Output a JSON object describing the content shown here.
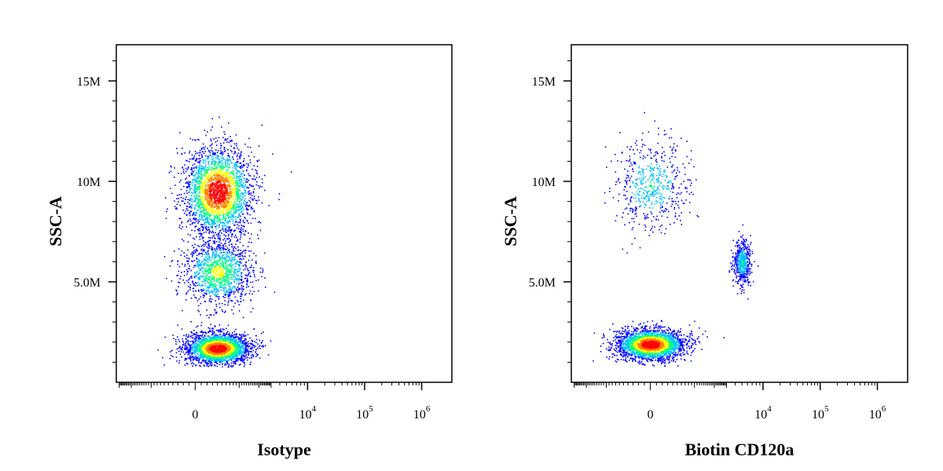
{
  "chart_data": [
    {
      "type": "scatter",
      "style": "flow-cytometry density dot plot (biexponential x, linear y)",
      "xlabel": "Isotype",
      "ylabel": "SSC-A",
      "x_scale": "biexponential",
      "x_ticks": [
        {
          "label": "0",
          "value": 0
        },
        {
          "base": "10",
          "exp": "4",
          "value": 10000
        },
        {
          "base": "10",
          "exp": "5",
          "value": 100000
        },
        {
          "base": "10",
          "exp": "6",
          "value": 1000000
        }
      ],
      "y_ticks": [
        {
          "label": "5.0M",
          "value": 5000000
        },
        {
          "label": "10M",
          "value": 10000000
        },
        {
          "label": "15M",
          "value": 15000000
        }
      ],
      "ylim": [
        0,
        16800000
      ],
      "populations": [
        {
          "x_center": 400,
          "x_spread": 900,
          "y_center": 1700000,
          "y_spread": 700000,
          "density": "high"
        },
        {
          "x_center": 400,
          "x_spread": 1000,
          "y_center": 9500000,
          "y_spread": 2000000,
          "density": "high"
        },
        {
          "x_center": 400,
          "x_spread": 1000,
          "y_center": 5500000,
          "y_spread": 1500000,
          "density": "medium"
        }
      ],
      "color_scale": [
        "#0000ff",
        "#00c0ff",
        "#00ff80",
        "#ffff00",
        "#ff8000",
        "#ff0000"
      ]
    },
    {
      "type": "scatter",
      "style": "flow-cytometry density dot plot (biexponential x, linear y)",
      "xlabel": "Biotin CD120a",
      "ylabel": "SSC-A",
      "x_scale": "biexponential",
      "x_ticks": [
        {
          "label": "0",
          "value": 0
        },
        {
          "base": "10",
          "exp": "4",
          "value": 10000
        },
        {
          "base": "10",
          "exp": "5",
          "value": 100000
        },
        {
          "base": "10",
          "exp": "6",
          "value": 1000000
        }
      ],
      "y_ticks": [
        {
          "label": "5.0M",
          "value": 5000000
        },
        {
          "label": "10M",
          "value": 10000000
        },
        {
          "label": "15M",
          "value": 15000000
        }
      ],
      "ylim": [
        0,
        16800000
      ],
      "populations": [
        {
          "x_center": 0,
          "x_spread": 600,
          "y_center": 1900000,
          "y_spread": 700000,
          "density": "high"
        },
        {
          "x_center": 0,
          "x_spread": 700,
          "y_center": 9800000,
          "y_spread": 2000000,
          "density": "low"
        },
        {
          "x_center": 5000,
          "x_spread": 1500,
          "y_center": 6000000,
          "y_spread": 1000000,
          "density": "low"
        }
      ],
      "color_scale": [
        "#0000ff",
        "#00c0ff",
        "#00ff80",
        "#ffff00",
        "#ff8000",
        "#ff0000"
      ]
    }
  ]
}
